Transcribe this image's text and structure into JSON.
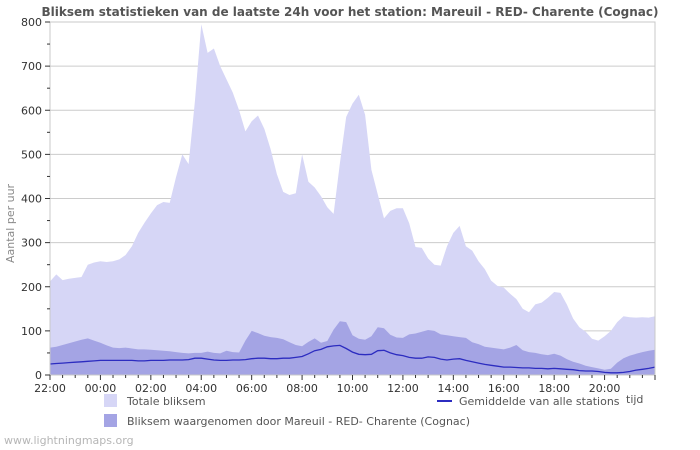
{
  "page": {
    "watermark": "www.lightningmaps.org"
  },
  "chart_data": {
    "type": "area",
    "title": "Bliksem statistieken van de laatste 24h voor het station: Mareuil - RED- Charente (Cognac)",
    "ylabel": "Aantal per uur",
    "xlabel": "tijd",
    "ylim": [
      0,
      800
    ],
    "hours_span": 24,
    "x_start": "22:00",
    "x_interval_minutes": 15,
    "minor_tick_minutes": 30,
    "grid": true,
    "legend_position": "bottom",
    "y_tick_labels": [
      "0",
      "100",
      "200",
      "300",
      "400",
      "500",
      "600",
      "700",
      "800"
    ],
    "x_tick_labels": [
      "22:00",
      "00:00",
      "02:00",
      "04:00",
      "06:00",
      "08:00",
      "10:00",
      "12:00",
      "14:00",
      "16:00",
      "18:00",
      "20:00"
    ],
    "x_tick_hours": [
      0,
      2,
      4,
      6,
      8,
      10,
      12,
      14,
      16,
      18,
      20,
      22
    ],
    "colors": {
      "total_area": "#d6d6f6",
      "station_area": "#a4a4e4",
      "average_line": "#2c2cc0",
      "grid_line": "#cccccc",
      "frame": "#c8c8c8",
      "tick": "#333333"
    },
    "series": [
      {
        "name": "Totale bliksem",
        "type": "area",
        "color": "#d6d6f6",
        "values": [
          212,
          228,
          215,
          218,
          220,
          222,
          250,
          255,
          258,
          256,
          258,
          262,
          272,
          292,
          322,
          345,
          366,
          385,
          392,
          390,
          448,
          500,
          478,
          620,
          795,
          730,
          740,
          700,
          670,
          640,
          600,
          552,
          575,
          588,
          558,
          512,
          455,
          415,
          408,
          412,
          500,
          438,
          425,
          405,
          380,
          365,
          480,
          585,
          615,
          635,
          590,
          465,
          410,
          355,
          372,
          378,
          378,
          344,
          290,
          288,
          264,
          250,
          248,
          292,
          322,
          338,
          292,
          282,
          258,
          240,
          214,
          202,
          198,
          184,
          172,
          150,
          142,
          160,
          164,
          175,
          188,
          186,
          160,
          128,
          108,
          98,
          82,
          78,
          88,
          100,
          120,
          133,
          131,
          130,
          131,
          130,
          133
        ]
      },
      {
        "name": "Bliksem waargenomen door Mareuil - RED- Charente (Cognac)",
        "type": "area",
        "color": "#a4a4e4",
        "values": [
          62,
          64,
          68,
          72,
          76,
          80,
          83,
          78,
          73,
          67,
          62,
          61,
          62,
          60,
          58,
          58,
          57,
          56,
          55,
          54,
          52,
          50,
          49,
          50,
          50,
          53,
          50,
          49,
          55,
          52,
          51,
          78,
          100,
          95,
          89,
          86,
          84,
          81,
          74,
          68,
          65,
          75,
          83,
          73,
          77,
          103,
          122,
          120,
          90,
          82,
          80,
          88,
          108,
          106,
          91,
          85,
          84,
          92,
          94,
          98,
          102,
          100,
          92,
          90,
          88,
          86,
          84,
          74,
          70,
          64,
          62,
          60,
          58,
          62,
          68,
          56,
          52,
          50,
          47,
          45,
          48,
          44,
          36,
          30,
          26,
          21,
          18,
          15,
          12,
          14,
          28,
          38,
          44,
          48,
          52,
          55,
          57
        ]
      },
      {
        "name": "Gemiddelde van alle stations",
        "type": "line",
        "color": "#2c2cc0",
        "values": [
          25,
          26,
          27,
          28,
          29,
          30,
          31,
          32,
          33,
          33,
          33,
          33,
          33,
          33,
          32,
          32,
          33,
          33,
          33,
          34,
          34,
          34,
          35,
          38,
          38,
          36,
          34,
          33,
          33,
          34,
          34,
          35,
          37,
          38,
          38,
          37,
          37,
          38,
          38,
          40,
          42,
          48,
          55,
          58,
          64,
          66,
          67,
          60,
          52,
          47,
          46,
          47,
          55,
          56,
          50,
          46,
          44,
          40,
          38,
          38,
          41,
          40,
          36,
          34,
          36,
          37,
          33,
          30,
          27,
          24,
          22,
          20,
          18,
          18,
          17,
          16,
          16,
          15,
          15,
          14,
          15,
          14,
          13,
          12,
          10,
          9,
          9,
          8,
          6,
          5,
          5,
          6,
          8,
          11,
          13,
          15,
          18
        ]
      }
    ]
  }
}
